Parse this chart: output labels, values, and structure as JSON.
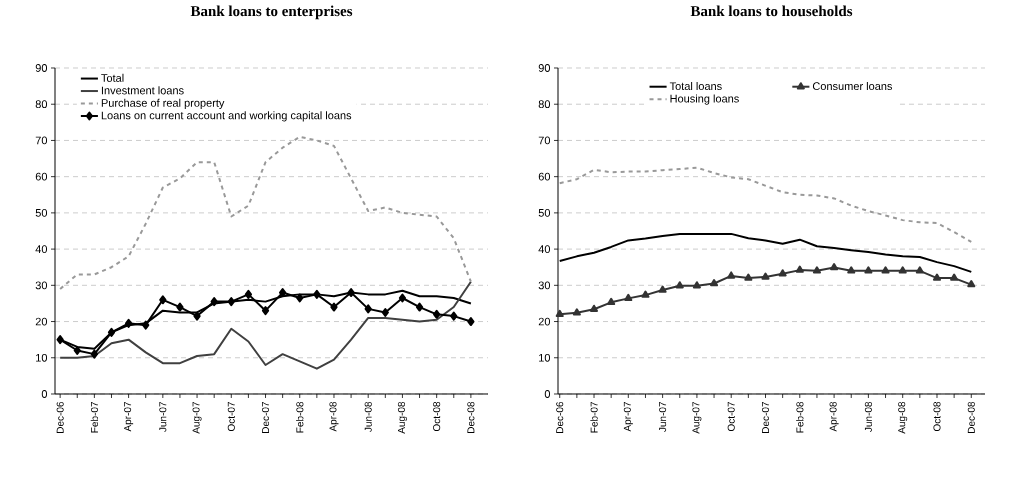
{
  "chart_data": [
    {
      "type": "line",
      "title": "Bank loans to enterprises",
      "categories": [
        "Dec-06",
        null,
        "Feb-07",
        null,
        "Apr-07",
        null,
        "Jun-07",
        null,
        "Aug-07",
        null,
        "Oct-07",
        null,
        "Dec-07",
        null,
        "Feb-08",
        null,
        "Apr-08",
        null,
        "Jun-08",
        null,
        "Aug-08",
        null,
        "Oct-08",
        null,
        "Dec-08"
      ],
      "series": [
        {
          "name": "Total",
          "color": "#000000",
          "line_style": "solid",
          "marker": "none",
          "values": [
            15,
            13,
            12.5,
            17,
            19,
            19.5,
            23,
            22.5,
            22.5,
            25,
            25.5,
            26,
            25.5,
            27,
            27.5,
            27.5,
            27,
            28,
            27.5,
            27.5,
            28.5,
            27,
            27,
            26.5,
            25
          ]
        },
        {
          "name": "Investment loans",
          "color": "#404040",
          "line_style": "solid",
          "marker": "none",
          "values": [
            10,
            10,
            10.5,
            14,
            15,
            11.5,
            8.5,
            8.5,
            10.5,
            11,
            18,
            14.5,
            8,
            11,
            9,
            7,
            9.5,
            15,
            21,
            21,
            20.5,
            20,
            20.5,
            24,
            31
          ]
        },
        {
          "name": "Purchase of real property",
          "color": "#999999",
          "line_style": "dashed",
          "marker": "none",
          "values": [
            29,
            33,
            33,
            35,
            38,
            47,
            57,
            59.5,
            64,
            64,
            49,
            52,
            64,
            68,
            71,
            70,
            68.5,
            59.5,
            50.5,
            51.5,
            50,
            49.5,
            49,
            43,
            31
          ]
        },
        {
          "name": "Loans on current account and working capital loans",
          "color": "#000000",
          "line_style": "solid",
          "marker": "diamond",
          "values": [
            15,
            12,
            11,
            17,
            19.5,
            19,
            26,
            24,
            21.5,
            25.5,
            25.5,
            27.5,
            23,
            28,
            26.5,
            27.5,
            24,
            28,
            23.5,
            22.5,
            26.5,
            24,
            22,
            21.5,
            20
          ]
        }
      ],
      "ylim": [
        0,
        90
      ],
      "yticks": [
        0,
        10,
        20,
        30,
        40,
        50,
        60,
        70,
        80,
        90
      ],
      "grid": "y",
      "legend": "top left"
    },
    {
      "type": "line",
      "title": "Bank loans to households",
      "categories": [
        "Dec-06",
        null,
        "Feb-07",
        null,
        "Apr-07",
        null,
        "Jun-07",
        null,
        "Aug-07",
        null,
        "Oct-07",
        null,
        "Dec-07",
        null,
        "Feb-08",
        null,
        "Apr-08",
        null,
        "Jun-08",
        null,
        "Aug-08",
        null,
        "Oct-08",
        null,
        "Dec-08"
      ],
      "series": [
        {
          "name": "Total loans",
          "color": "#000000",
          "line_style": "solid",
          "marker": "none",
          "values": [
            36.7,
            38,
            39,
            40.6,
            42.4,
            42.9,
            43.6,
            44.2,
            44.2,
            44.2,
            44.2,
            43,
            42.4,
            41.5,
            42.6,
            40.8,
            40.3,
            39.7,
            39.2,
            38.5,
            38,
            37.8,
            36.4,
            35.3,
            33.7
          ]
        },
        {
          "name": "Consumer loans",
          "color": "#333333",
          "line_style": "solid",
          "marker": "triangle",
          "values": [
            22,
            22.4,
            23.4,
            25.3,
            26.4,
            27.3,
            28.7,
            29.9,
            29.9,
            30.5,
            32.6,
            32,
            32.3,
            33.2,
            34.2,
            34,
            34.9,
            34,
            34,
            34,
            34,
            34,
            32,
            32,
            30.2
          ]
        },
        {
          "name": "Housing loans",
          "color": "#999999",
          "line_style": "dashed",
          "marker": "none",
          "values": [
            58.2,
            59.3,
            61.9,
            61.2,
            61.4,
            61.4,
            61.8,
            62.1,
            62.5,
            61,
            59.8,
            59.3,
            57.5,
            55.7,
            55,
            54.8,
            54,
            52,
            50.5,
            49.3,
            48,
            47.4,
            47.2,
            44.7,
            42
          ]
        }
      ],
      "ylim": [
        0,
        90
      ],
      "yticks": [
        0,
        10,
        20,
        30,
        40,
        50,
        60,
        70,
        80,
        90
      ],
      "grid": "y",
      "legend": "top"
    }
  ]
}
